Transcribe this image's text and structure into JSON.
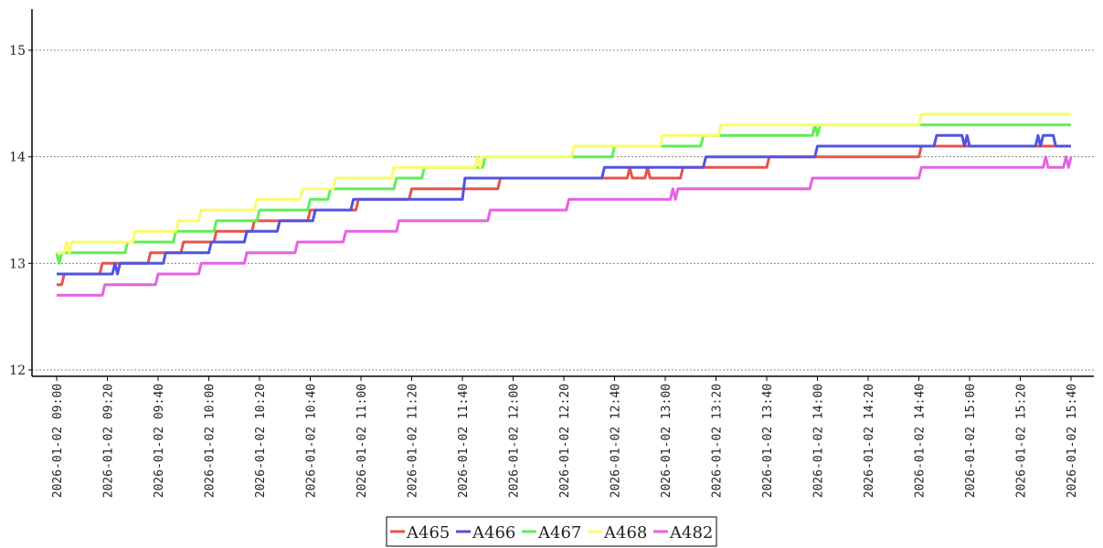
{
  "chart_data": {
    "type": "line",
    "title": "",
    "xlabel": "",
    "ylabel": "",
    "ylim": [
      12,
      15.4
    ],
    "yticks": [
      12,
      13,
      14,
      15
    ],
    "grid": "horizontal dotted",
    "legend_position": "bottom-center",
    "x_ticks": [
      "2026-01-02 09:00",
      "2026-01-02 09:20",
      "2026-01-02 09:40",
      "2026-01-02 10:00",
      "2026-01-02 10:20",
      "2026-01-02 10:40",
      "2026-01-02 11:00",
      "2026-01-02 11:20",
      "2026-01-02 11:40",
      "2026-01-02 12:00",
      "2026-01-02 12:20",
      "2026-01-02 12:40",
      "2026-01-02 13:00",
      "2026-01-02 13:20",
      "2026-01-02 13:40",
      "2026-01-02 14:00",
      "2026-01-02 14:20",
      "2026-01-02 14:40",
      "2026-01-02 15:00",
      "2026-01-02 15:20",
      "2026-01-02 15:40"
    ],
    "series": [
      {
        "name": "A465",
        "color": "#e8534a",
        "points": [
          [
            "09:00",
            12.8
          ],
          [
            "09:02",
            12.8
          ],
          [
            "09:03",
            12.9
          ],
          [
            "09:17",
            12.9
          ],
          [
            "09:18",
            13.0
          ],
          [
            "09:36",
            13.0
          ],
          [
            "09:37",
            13.1
          ],
          [
            "09:49",
            13.1
          ],
          [
            "09:50",
            13.2
          ],
          [
            "10:02",
            13.2
          ],
          [
            "10:03",
            13.3
          ],
          [
            "10:17",
            13.3
          ],
          [
            "10:18",
            13.4
          ],
          [
            "10:39",
            13.4
          ],
          [
            "10:40",
            13.5
          ],
          [
            "10:58",
            13.5
          ],
          [
            "10:59",
            13.6
          ],
          [
            "11:19",
            13.6
          ],
          [
            "11:20",
            13.7
          ],
          [
            "11:54",
            13.7
          ],
          [
            "11:55",
            13.8
          ],
          [
            "12:45",
            13.8
          ],
          [
            "12:46",
            13.9
          ],
          [
            "12:47",
            13.8
          ],
          [
            "12:52",
            13.8
          ],
          [
            "12:53",
            13.9
          ],
          [
            "12:54",
            13.8
          ],
          [
            "13:06",
            13.8
          ],
          [
            "13:07",
            13.9
          ],
          [
            "13:40",
            13.9
          ],
          [
            "13:41",
            14.0
          ],
          [
            "14:40",
            14.0
          ],
          [
            "14:41",
            14.1
          ],
          [
            "15:40",
            14.1
          ]
        ]
      },
      {
        "name": "A466",
        "color": "#5153e0",
        "points": [
          [
            "09:00",
            12.9
          ],
          [
            "09:22",
            12.9
          ],
          [
            "09:23",
            13.0
          ],
          [
            "09:24",
            12.9
          ],
          [
            "09:25",
            13.0
          ],
          [
            "09:42",
            13.0
          ],
          [
            "09:43",
            13.1
          ],
          [
            "10:00",
            13.1
          ],
          [
            "10:01",
            13.2
          ],
          [
            "10:14",
            13.2
          ],
          [
            "10:15",
            13.3
          ],
          [
            "10:27",
            13.3
          ],
          [
            "10:28",
            13.4
          ],
          [
            "10:41",
            13.4
          ],
          [
            "10:42",
            13.5
          ],
          [
            "10:56",
            13.5
          ],
          [
            "10:57",
            13.6
          ],
          [
            "11:40",
            13.6
          ],
          [
            "11:41",
            13.8
          ],
          [
            "12:35",
            13.8
          ],
          [
            "12:36",
            13.9
          ],
          [
            "13:15",
            13.9
          ],
          [
            "13:16",
            14.0
          ],
          [
            "13:59",
            14.0
          ],
          [
            "14:00",
            14.1
          ],
          [
            "14:46",
            14.1
          ],
          [
            "14:47",
            14.2
          ],
          [
            "14:57",
            14.2
          ],
          [
            "14:58",
            14.1
          ],
          [
            "14:59",
            14.2
          ],
          [
            "15:00",
            14.1
          ],
          [
            "15:26",
            14.1
          ],
          [
            "15:27",
            14.2
          ],
          [
            "15:28",
            14.1
          ],
          [
            "15:29",
            14.2
          ],
          [
            "15:33",
            14.2
          ],
          [
            "15:34",
            14.1
          ],
          [
            "15:40",
            14.1
          ]
        ]
      },
      {
        "name": "A467",
        "color": "#5def55",
        "points": [
          [
            "09:00",
            13.1
          ],
          [
            "09:01",
            13.0
          ],
          [
            "09:02",
            13.1
          ],
          [
            "09:27",
            13.1
          ],
          [
            "09:28",
            13.2
          ],
          [
            "09:46",
            13.2
          ],
          [
            "09:47",
            13.3
          ],
          [
            "10:02",
            13.3
          ],
          [
            "10:03",
            13.4
          ],
          [
            "10:19",
            13.4
          ],
          [
            "10:20",
            13.5
          ],
          [
            "10:39",
            13.5
          ],
          [
            "10:40",
            13.6
          ],
          [
            "10:47",
            13.6
          ],
          [
            "10:48",
            13.7
          ],
          [
            "11:13",
            13.7
          ],
          [
            "11:14",
            13.8
          ],
          [
            "11:24",
            13.8
          ],
          [
            "11:25",
            13.9
          ],
          [
            "11:48",
            13.9
          ],
          [
            "11:49",
            14.0
          ],
          [
            "12:39",
            14.0
          ],
          [
            "12:40",
            14.1
          ],
          [
            "13:14",
            14.1
          ],
          [
            "13:15",
            14.2
          ],
          [
            "13:58",
            14.2
          ],
          [
            "13:59",
            14.3
          ],
          [
            "14:00",
            14.2
          ],
          [
            "14:01",
            14.3
          ],
          [
            "15:40",
            14.3
          ]
        ]
      },
      {
        "name": "A468",
        "color": "#fbfb6b",
        "points": [
          [
            "09:00",
            13.1
          ],
          [
            "09:03",
            13.1
          ],
          [
            "09:04",
            13.2
          ],
          [
            "09:05",
            13.1
          ],
          [
            "09:06",
            13.2
          ],
          [
            "09:30",
            13.2
          ],
          [
            "09:31",
            13.3
          ],
          [
            "09:47",
            13.3
          ],
          [
            "09:48",
            13.4
          ],
          [
            "09:56",
            13.4
          ],
          [
            "09:57",
            13.5
          ],
          [
            "10:18",
            13.5
          ],
          [
            "10:19",
            13.6
          ],
          [
            "10:36",
            13.6
          ],
          [
            "10:37",
            13.7
          ],
          [
            "10:49",
            13.7
          ],
          [
            "10:50",
            13.8
          ],
          [
            "11:12",
            13.8
          ],
          [
            "11:13",
            13.9
          ],
          [
            "11:45",
            13.9
          ],
          [
            "11:46",
            14.0
          ],
          [
            "11:47",
            13.9
          ],
          [
            "11:48",
            14.0
          ],
          [
            "12:23",
            14.0
          ],
          [
            "12:24",
            14.1
          ],
          [
            "12:58",
            14.1
          ],
          [
            "12:59",
            14.2
          ],
          [
            "13:21",
            14.2
          ],
          [
            "13:22",
            14.3
          ],
          [
            "14:40",
            14.3
          ],
          [
            "14:41",
            14.4
          ],
          [
            "15:40",
            14.4
          ]
        ]
      },
      {
        "name": "A482",
        "color": "#e661e6",
        "points": [
          [
            "09:00",
            12.7
          ],
          [
            "09:18",
            12.7
          ],
          [
            "09:19",
            12.8
          ],
          [
            "09:39",
            12.8
          ],
          [
            "09:40",
            12.9
          ],
          [
            "09:56",
            12.9
          ],
          [
            "09:57",
            13.0
          ],
          [
            "10:14",
            13.0
          ],
          [
            "10:15",
            13.1
          ],
          [
            "10:34",
            13.1
          ],
          [
            "10:35",
            13.2
          ],
          [
            "10:53",
            13.2
          ],
          [
            "10:54",
            13.3
          ],
          [
            "11:14",
            13.3
          ],
          [
            "11:15",
            13.4
          ],
          [
            "11:50",
            13.4
          ],
          [
            "11:51",
            13.5
          ],
          [
            "12:21",
            13.5
          ],
          [
            "12:22",
            13.6
          ],
          [
            "13:02",
            13.6
          ],
          [
            "13:03",
            13.7
          ],
          [
            "13:04",
            13.6
          ],
          [
            "13:05",
            13.7
          ],
          [
            "13:57",
            13.7
          ],
          [
            "13:58",
            13.8
          ],
          [
            "14:40",
            13.8
          ],
          [
            "14:41",
            13.9
          ],
          [
            "15:29",
            13.9
          ],
          [
            "15:30",
            14.0
          ],
          [
            "15:31",
            13.9
          ],
          [
            "15:37",
            13.9
          ],
          [
            "15:38",
            14.0
          ],
          [
            "15:39",
            13.9
          ],
          [
            "15:40",
            14.0
          ]
        ]
      }
    ]
  }
}
